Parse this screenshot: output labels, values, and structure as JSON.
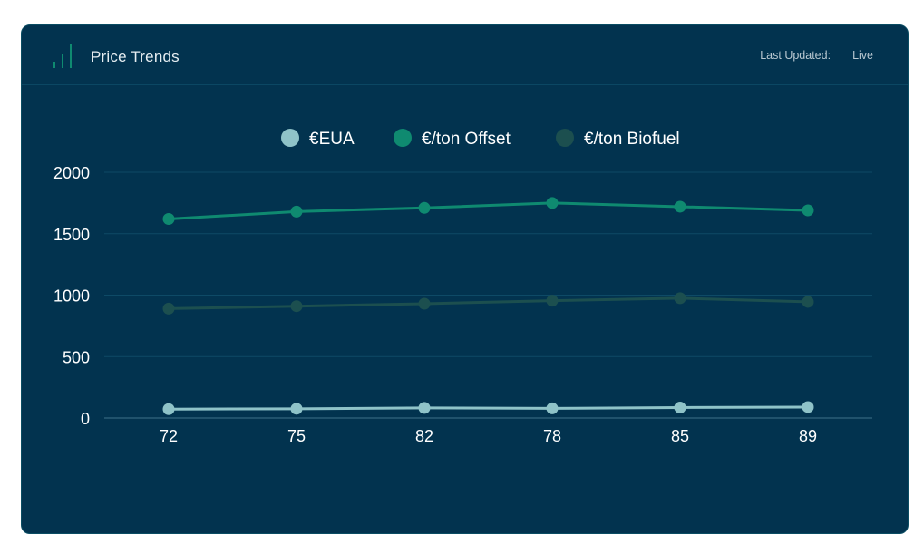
{
  "header": {
    "title": "Price Trends",
    "icon": "bar-chart-icon",
    "last_updated_label": "Last Updated:",
    "last_updated_value": "Live"
  },
  "colors": {
    "background": "#02334f",
    "eua": "#8fc3c8",
    "offset": "#0f8a70",
    "biofuel": "#1c4f4f",
    "grid": "#0e4a66"
  },
  "chart_data": {
    "type": "line",
    "categories": [
      "72",
      "75",
      "82",
      "78",
      "85",
      "89"
    ],
    "series": [
      {
        "name": "€EUA",
        "values": [
          72,
          75,
          82,
          78,
          85,
          89
        ]
      },
      {
        "name": "€/ton Offset",
        "values": [
          1620,
          1680,
          1710,
          1750,
          1720,
          1690
        ]
      },
      {
        "name": "€/ton Biofuel",
        "values": [
          890,
          910,
          930,
          955,
          975,
          945
        ]
      }
    ],
    "ylim": [
      0,
      2000
    ],
    "yticks": [
      0,
      500,
      1000,
      1500,
      2000
    ],
    "grid": true,
    "legend_position": "top-center"
  }
}
